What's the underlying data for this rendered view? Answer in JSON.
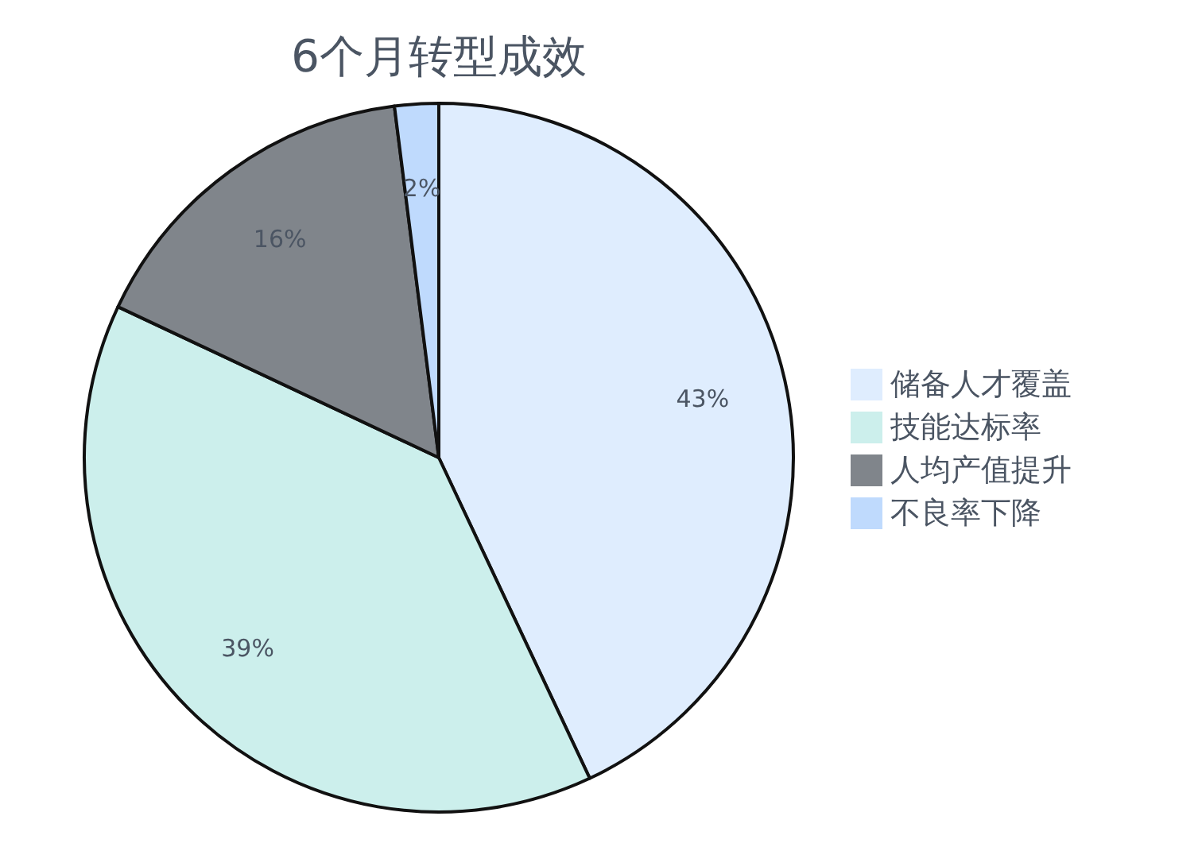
{
  "chart_data": {
    "type": "pie",
    "title": "6个月转型成效",
    "categories": [
      "储备人才覆盖",
      "技能达标率",
      "人均产值提升",
      "不良率下降"
    ],
    "values": [
      43,
      39,
      16,
      2
    ],
    "colors": [
      "#dfedfe",
      "#ccefec",
      "#80858b",
      "#bfdafd"
    ],
    "value_labels": [
      "43%",
      "39%",
      "16%",
      "2%"
    ],
    "legend": "right"
  }
}
